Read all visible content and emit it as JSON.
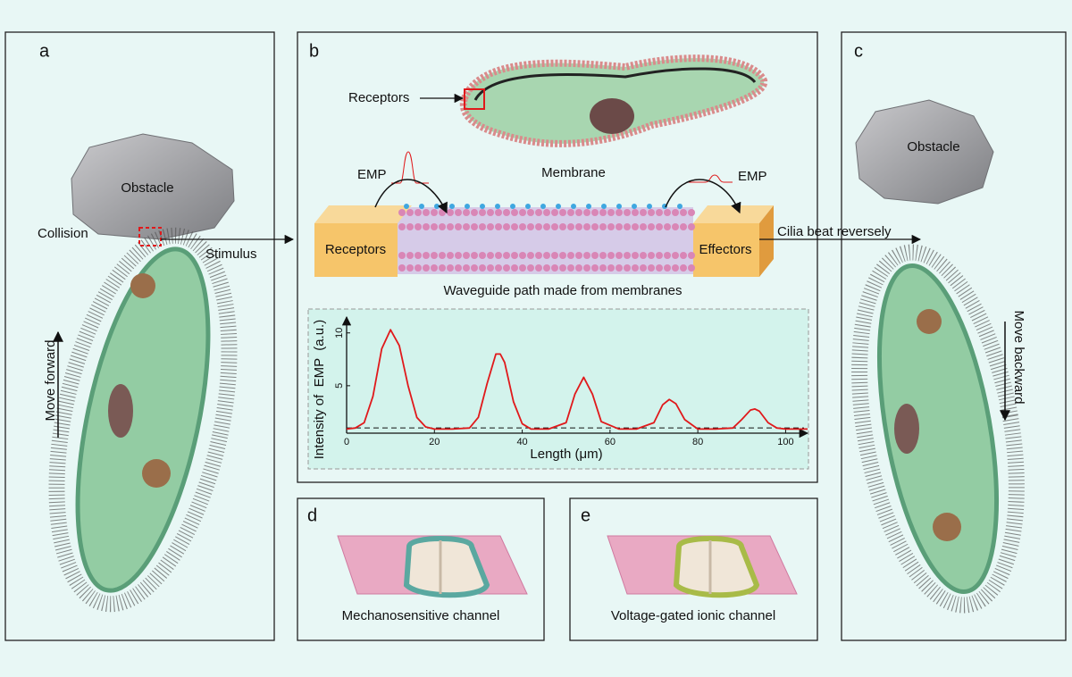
{
  "panels": {
    "a": {
      "label": "a",
      "obstacle": "Obstacle",
      "collision": "Collision",
      "move": "Move forward"
    },
    "b": {
      "label": "b",
      "receptors_top": "Receptors",
      "membrane": "Membrane",
      "emp_left": "EMP",
      "emp_right": "EMP",
      "receptors": "Receptors",
      "effectors": "Effectors",
      "caption": "Waveguide path made from membranes"
    },
    "c": {
      "label": "c",
      "obstacle": "Obstacle",
      "move": "Move backward"
    },
    "d": {
      "label": "d",
      "caption": "Mechanosensitive channel"
    },
    "e": {
      "label": "e",
      "caption": "Voltage-gated ionic channel"
    }
  },
  "arrows": {
    "stimulus": "Stimulus",
    "cilia": "Cilia beat reversely"
  },
  "chart_data": {
    "type": "line",
    "x_label": "Length (μm)",
    "y_label": "Intensity of  EMP  (a.u.)",
    "x": [
      0,
      2,
      4,
      6,
      8,
      10,
      12,
      14,
      16,
      18,
      20,
      24,
      28,
      30,
      32,
      34,
      35,
      36,
      38,
      40,
      42,
      46,
      50,
      52,
      54,
      56,
      58,
      62,
      66,
      70,
      72,
      73.5,
      75,
      77,
      80,
      84,
      88,
      90,
      92,
      93,
      94,
      96,
      98,
      100,
      105
    ],
    "series": [
      {
        "color": "#e0191b",
        "values": [
          0.9,
          1.0,
          1.5,
          4.0,
          8.5,
          10.3,
          8.8,
          5.0,
          2.0,
          1.1,
          0.9,
          0.9,
          1.0,
          2.0,
          5.2,
          8.0,
          8.0,
          7.2,
          3.5,
          1.4,
          0.9,
          0.9,
          1.5,
          4.2,
          5.8,
          4.2,
          1.6,
          0.9,
          0.9,
          1.5,
          3.2,
          3.7,
          3.3,
          1.8,
          0.9,
          0.9,
          1.0,
          1.8,
          2.7,
          2.8,
          2.6,
          1.5,
          1.0,
          0.9,
          0.9
        ]
      }
    ],
    "baseline": 1,
    "xlim": [
      0,
      105
    ],
    "ylim": [
      0,
      11.5
    ],
    "xticks": [
      0,
      20,
      40,
      60,
      80,
      100
    ],
    "yticks": [
      5,
      10
    ]
  }
}
